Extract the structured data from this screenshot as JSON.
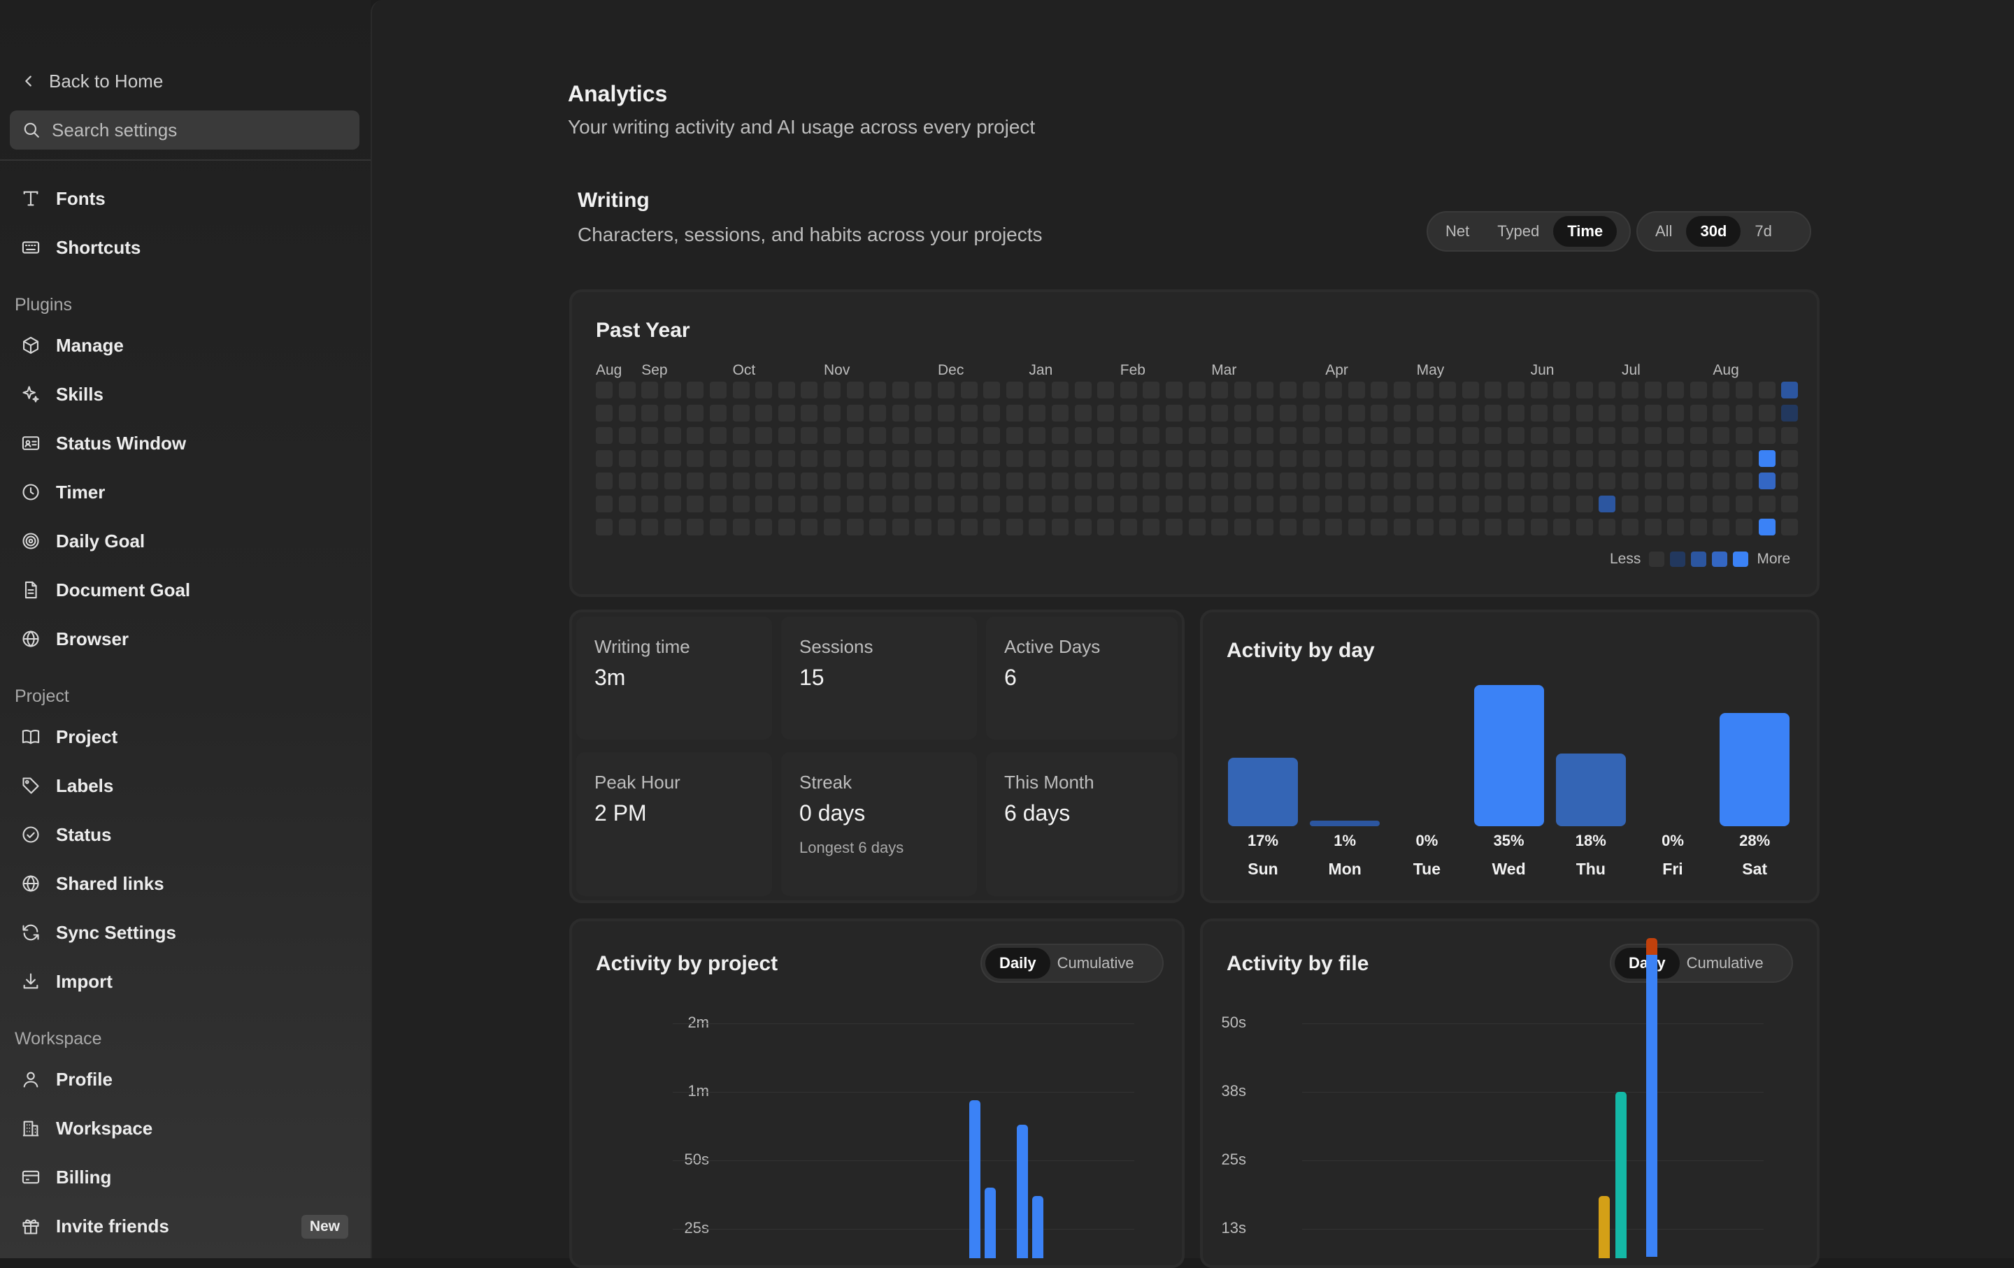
{
  "sidebar": {
    "back_label": "Back to Home",
    "search_placeholder": "Search settings",
    "top_items": [
      {
        "label": "Fonts",
        "icon": "type-icon"
      },
      {
        "label": "Shortcuts",
        "icon": "keyboard-icon"
      }
    ],
    "sections": [
      {
        "label": "Plugins",
        "items": [
          {
            "label": "Manage",
            "icon": "package-icon"
          },
          {
            "label": "Skills",
            "icon": "sparkles-icon"
          },
          {
            "label": "Status Window",
            "icon": "id-card-icon"
          },
          {
            "label": "Timer",
            "icon": "clock-icon"
          },
          {
            "label": "Daily Goal",
            "icon": "target-icon"
          },
          {
            "label": "Document Goal",
            "icon": "document-icon"
          },
          {
            "label": "Browser",
            "icon": "globe-icon"
          }
        ]
      },
      {
        "label": "Project",
        "items": [
          {
            "label": "Project",
            "icon": "book-icon"
          },
          {
            "label": "Labels",
            "icon": "tag-icon"
          },
          {
            "label": "Status",
            "icon": "check-circle-icon"
          },
          {
            "label": "Shared links",
            "icon": "globe-icon"
          },
          {
            "label": "Sync Settings",
            "icon": "sync-icon"
          },
          {
            "label": "Import",
            "icon": "download-icon"
          }
        ]
      },
      {
        "label": "Workspace",
        "items": [
          {
            "label": "Profile",
            "icon": "user-icon"
          },
          {
            "label": "Workspace",
            "icon": "building-icon"
          },
          {
            "label": "Billing",
            "icon": "credit-card-icon"
          },
          {
            "label": "Invite friends",
            "icon": "gift-icon",
            "badge": "New"
          }
        ]
      }
    ]
  },
  "main": {
    "title": "Analytics",
    "subtitle": "Your writing activity and AI usage across every project",
    "writing": {
      "title": "Writing",
      "subtitle": "Characters, sessions, and habits across your projects",
      "metric_options": [
        "Net",
        "Typed",
        "Time"
      ],
      "metric_selected": "Time",
      "range_options": [
        "All",
        "30d",
        "7d"
      ],
      "range_selected": "30d"
    },
    "heatmap": {
      "title": "Past Year",
      "months": [
        "Aug",
        "Sep",
        "Oct",
        "Nov",
        "Dec",
        "Jan",
        "Feb",
        "Mar",
        "Apr",
        "May",
        "Jun",
        "Jul",
        "Aug"
      ],
      "weeks": 53,
      "active": [
        {
          "week": 52,
          "day": 0,
          "level": 2
        },
        {
          "week": 52,
          "day": 1,
          "level": 1
        },
        {
          "week": 51,
          "day": 3,
          "level": 4
        },
        {
          "week": 51,
          "day": 4,
          "level": 3
        },
        {
          "week": 44,
          "day": 5,
          "level": 2
        },
        {
          "week": 51,
          "day": 6,
          "level": 4
        }
      ],
      "legend_less": "Less",
      "legend_more": "More",
      "colors": [
        "#333333",
        "#22385e",
        "#2c56a0",
        "#3467c4",
        "#3b82f6"
      ]
    },
    "stats": [
      {
        "label": "Writing time",
        "value": "3m"
      },
      {
        "label": "Sessions",
        "value": "15"
      },
      {
        "label": "Active Days",
        "value": "6"
      },
      {
        "label": "Peak Hour",
        "value": "2 PM"
      },
      {
        "label": "Streak",
        "value": "0 days",
        "note": "Longest 6 days"
      },
      {
        "label": "This Month",
        "value": "6 days"
      }
    ],
    "activity_by_day": {
      "title": "Activity by day",
      "days": [
        {
          "day": "Sun",
          "pct": "17%",
          "value": 17
        },
        {
          "day": "Mon",
          "pct": "1%",
          "value": 1
        },
        {
          "day": "Tue",
          "pct": "0%",
          "value": 0
        },
        {
          "day": "Wed",
          "pct": "35%",
          "value": 35
        },
        {
          "day": "Thu",
          "pct": "18%",
          "value": 18
        },
        {
          "day": "Fri",
          "pct": "0%",
          "value": 0
        },
        {
          "day": "Sat",
          "pct": "28%",
          "value": 28
        }
      ]
    },
    "activity_by_project": {
      "title": "Activity by project",
      "options": [
        "Daily",
        "Cumulative"
      ],
      "selected": "Daily",
      "y_ticks": [
        "2m",
        "1m",
        "50s",
        "25s"
      ]
    },
    "activity_by_file": {
      "title": "Activity by file",
      "options": [
        "Daily",
        "Cumulative"
      ],
      "selected": "Daily",
      "y_ticks": [
        "50s",
        "38s",
        "25s",
        "13s"
      ]
    },
    "accent_color": "#3b82f6"
  },
  "chart_data": [
    {
      "type": "bar",
      "title": "Activity by day",
      "categories": [
        "Sun",
        "Mon",
        "Tue",
        "Wed",
        "Thu",
        "Fri",
        "Sat"
      ],
      "values": [
        17,
        1,
        0,
        35,
        18,
        0,
        28
      ]
    },
    {
      "type": "bar",
      "title": "Activity by project",
      "y_ticks": [
        "2m",
        "1m",
        "50s",
        "25s"
      ],
      "series": [
        {
          "values_seconds": [
            72,
            40,
            63,
            37
          ]
        }
      ]
    },
    {
      "type": "bar",
      "title": "Activity by file",
      "y_ticks": [
        "50s",
        "38s",
        "25s",
        "13s"
      ],
      "stacks": [
        {
          "segments": [
            {
              "color": "#65a30d",
              "value": 6
            },
            {
              "color": "#d4a017",
              "value": 13
            }
          ]
        },
        {
          "segments": [
            {
              "color": "#14b8a6",
              "value": 38
            }
          ]
        },
        {
          "segments": [
            {
              "color": "#3b82f6",
              "value": 63
            },
            {
              "color": "#c2410c",
              "value": 3
            }
          ]
        }
      ]
    }
  ]
}
